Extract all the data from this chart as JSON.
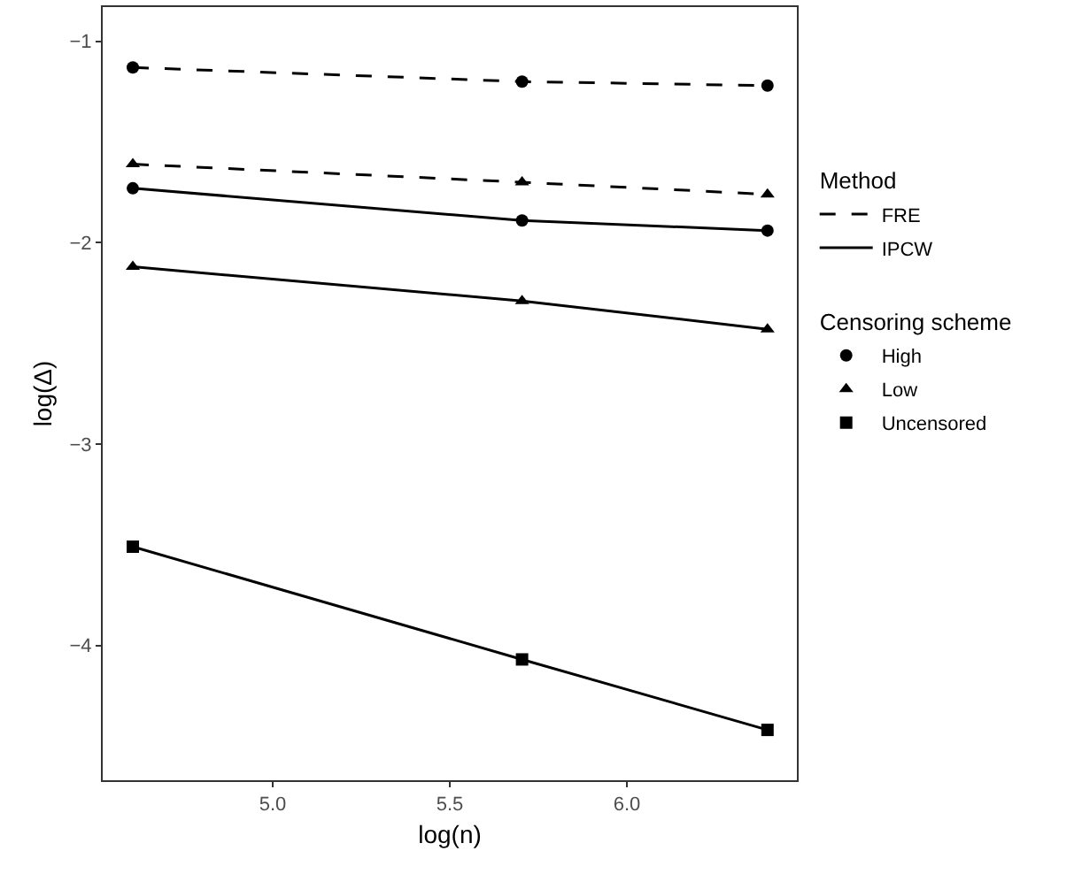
{
  "chart_data": {
    "type": "line",
    "xlabel": "log(n)",
    "ylabel": "log(Δ)",
    "x": [
      4.605,
      5.704,
      6.397
    ],
    "series": [
      {
        "color": "#000000",
        "line_style": "dashed",
        "marker": "circle",
        "values": [
          -1.13,
          -1.2,
          -1.22
        ]
      },
      {
        "color": "#000000",
        "line_style": "dashed",
        "marker": "triangle",
        "values": [
          -1.61,
          -1.7,
          -1.76
        ]
      },
      {
        "color": "#000000",
        "line_style": "solid",
        "marker": "circle",
        "values": [
          -1.73,
          -1.89,
          -1.94
        ]
      },
      {
        "color": "#000000",
        "line_style": "solid",
        "marker": "triangle",
        "values": [
          -2.12,
          -2.29,
          -2.43
        ]
      },
      {
        "color": "#000000",
        "line_style": "solid",
        "marker": "square",
        "values": [
          -3.51,
          -4.07,
          -4.42
        ]
      }
    ],
    "xlim": [
      4.52,
      6.48
    ],
    "xticks": [
      {
        "value": 5,
        "label": "5.0"
      },
      5.5,
      {
        "value": 6,
        "label": "6.0"
      }
    ],
    "ylim": [
      -4.67,
      -0.83
    ],
    "yticks": [
      {
        "value": -4,
        "label": "−4"
      },
      {
        "value": -3,
        "label": "−3"
      },
      {
        "value": -2,
        "label": "−2"
      },
      {
        "value": -1,
        "label": "−1"
      }
    ],
    "grid": false,
    "legend_title": "Method",
    "annotations": [
      "FRE",
      "IPCW",
      "Censoring scheme",
      "High",
      "Low",
      "Uncensored"
    ]
  }
}
